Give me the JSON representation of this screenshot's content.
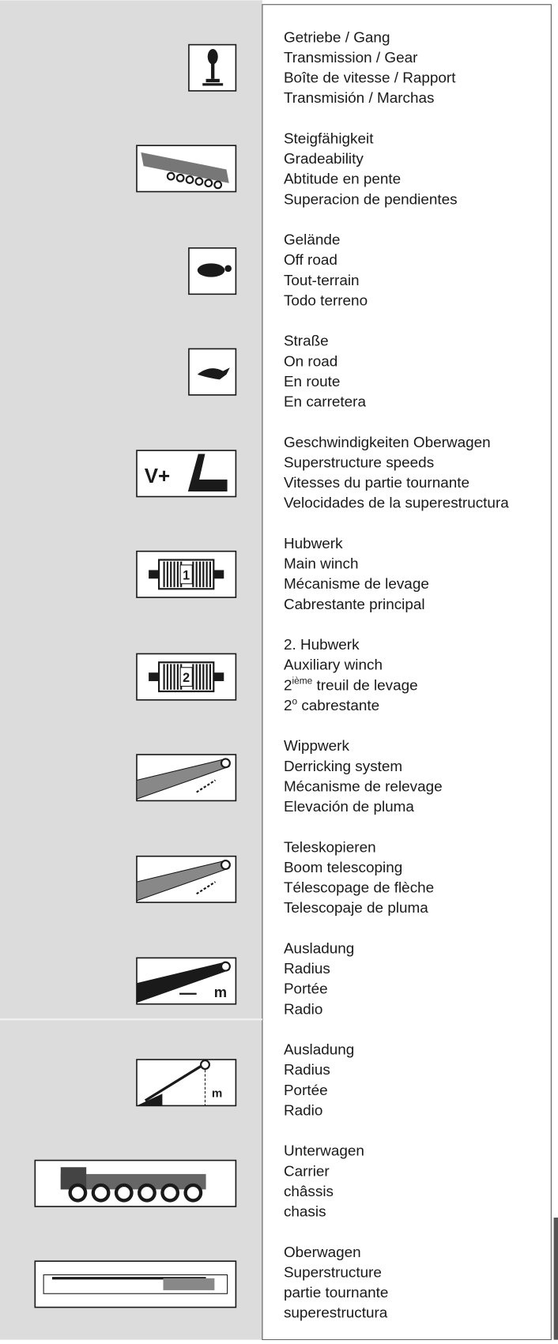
{
  "rows": [
    {
      "lines": [
        "Getriebe / Gang",
        "Transmission / Gear",
        "Boîte de vitesse / Rapport",
        "Transmisión / Marchas"
      ]
    },
    {
      "lines": [
        "Steigfähigkeit",
        "Gradeability",
        "Abtitude en pente",
        "Superacion de pendientes"
      ]
    },
    {
      "lines": [
        "Gelände",
        "Off road",
        "Tout-terrain",
        "Todo terreno"
      ]
    },
    {
      "lines": [
        "Straße",
        "On road",
        "En route",
        "En carretera"
      ]
    },
    {
      "lines": [
        "Geschwindigkeiten Oberwagen",
        "Superstructure speeds",
        "Vitesses du partie tournante",
        "Velocidades de la superestructura"
      ],
      "icon_text": "V+"
    },
    {
      "lines": [
        "Hubwerk",
        "Main winch",
        "Mécanisme de levage",
        "Cabrestante principal"
      ],
      "icon_text": "1"
    },
    {
      "lines": [
        "2. Hubwerk",
        "Auxiliary winch",
        {
          "pre": "2",
          "sup": "ième",
          "post": " treuil de levage"
        },
        {
          "pre": "2",
          "sup": "o",
          "post": " cabrestante"
        }
      ],
      "icon_text": "2"
    },
    {
      "lines": [
        "Wippwerk",
        "Derricking system",
        "Mécanisme de relevage",
        "Elevación de pluma"
      ]
    },
    {
      "lines": [
        "Teleskopieren",
        "Boom telescoping",
        "Télescopage de flèche",
        "Telescopaje de pluma"
      ]
    },
    {
      "lines": [
        "Ausladung",
        "Radius",
        "Portée",
        "Radio"
      ],
      "icon_text": "m"
    },
    {
      "lines": [
        "Ausladung",
        "Radius",
        "Portée",
        "Radio"
      ],
      "icon_text": "m"
    },
    {
      "lines": [
        "Unterwagen",
        "Carrier",
        "châssis",
        "chasis"
      ]
    },
    {
      "lines": [
        "Oberwagen",
        "Superstructure",
        "partie tournante",
        "superestructura"
      ]
    }
  ]
}
